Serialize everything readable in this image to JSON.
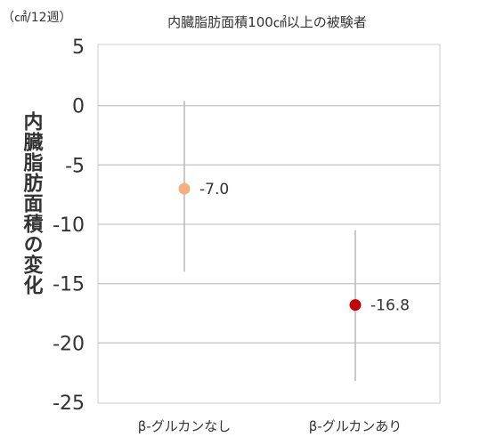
{
  "chart_data": {
    "type": "scatter",
    "title": "内臓脂肪面積100㎠以上の被験者",
    "unit_label": "（㎠/12週）",
    "ylabel": "内臓脂肪面積の変化",
    "xlabel": "",
    "ylim": [
      -25,
      5
    ],
    "yticks": [
      5,
      0,
      -5,
      -10,
      -15,
      -20,
      -25
    ],
    "yticks_labels": [
      "5",
      "0",
      "-5",
      "-10",
      "-15",
      "-20",
      "-25"
    ],
    "grid": true,
    "categories": [
      "β-グルカンなし",
      "β-グルカンあり"
    ],
    "points": [
      {
        "category": "β-グルカンなし",
        "value": -7.0,
        "error_low": -14.0,
        "error_high": 0.4,
        "label": "-7.0",
        "color": "#f4b07e"
      },
      {
        "category": "β-グルカンあり",
        "value": -16.8,
        "error_low": -23.2,
        "error_high": -10.5,
        "label": "-16.8",
        "color": "#c40000"
      }
    ],
    "colors": {
      "grid": "#c8c8c8",
      "error_bar": "#b8b8b8",
      "frame": "#cccccc"
    }
  }
}
